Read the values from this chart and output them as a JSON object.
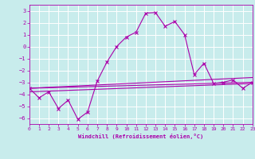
{
  "xlabel": "Windchill (Refroidissement éolien,°C)",
  "xlim": [
    0,
    23
  ],
  "ylim": [
    -6.5,
    3.5
  ],
  "yticks": [
    3,
    2,
    1,
    0,
    -1,
    -2,
    -3,
    -4,
    -5,
    -6
  ],
  "xticks": [
    0,
    1,
    2,
    3,
    4,
    5,
    6,
    7,
    8,
    9,
    10,
    11,
    12,
    13,
    14,
    15,
    16,
    17,
    18,
    19,
    20,
    21,
    22,
    23
  ],
  "bg_color": "#c8ecec",
  "grid_color": "#ffffff",
  "line_color": "#aa00aa",
  "series": {
    "main": {
      "x": [
        0,
        1,
        2,
        3,
        4,
        5,
        6,
        7,
        8,
        9,
        10,
        11,
        12,
        13,
        14,
        15,
        16,
        17,
        18,
        19,
        20,
        21,
        22,
        23
      ],
      "y": [
        -3.5,
        -4.3,
        -3.8,
        -5.2,
        -4.5,
        -6.1,
        -5.5,
        -2.9,
        -1.3,
        0.0,
        0.8,
        1.2,
        2.8,
        2.85,
        1.7,
        2.1,
        1.0,
        -2.35,
        -1.4,
        -3.1,
        -3.0,
        -2.8,
        -3.5,
        -3.0
      ]
    },
    "line1": {
      "x": [
        0,
        23
      ],
      "y": [
        -3.5,
        -2.6
      ]
    },
    "line2": {
      "x": [
        0,
        23
      ],
      "y": [
        -3.5,
        -3.0
      ]
    },
    "line3": {
      "x": [
        0,
        23
      ],
      "y": [
        -3.8,
        -3.1
      ]
    }
  }
}
